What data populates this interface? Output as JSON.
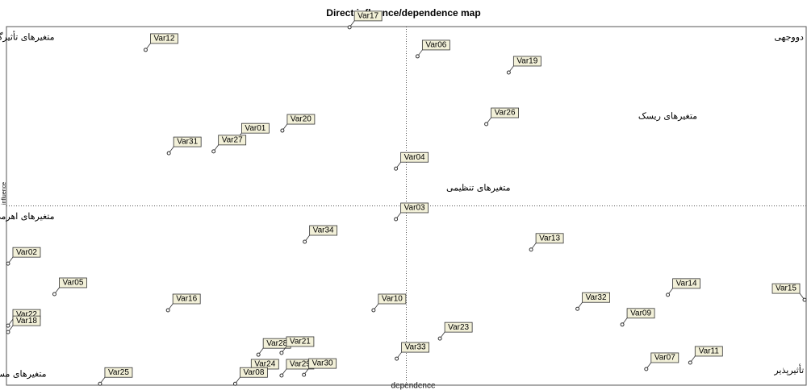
{
  "chart_data": {
    "type": "scatter",
    "title": "Direct influence/dependence map",
    "x_label": "dependence",
    "y_label": "influence",
    "xlim": [
      0,
      100
    ],
    "ylim": [
      0,
      100
    ],
    "color": "#333333",
    "label_fill": "#f2f0d8",
    "quadrant_lines": true,
    "labels": [
      "Var12",
      "Var17",
      "Var06",
      "Var19",
      "Var26",
      "Var01",
      "Var20",
      "Var31",
      "Var27",
      "Var04",
      "Var03",
      "Var34",
      "Var13",
      "Var02",
      "Var05",
      "Var16",
      "Var10",
      "Var32",
      "Var14",
      "Var15",
      "Var09",
      "Var22",
      "Var18",
      "Var28",
      "Var23",
      "Var21",
      "Var33",
      "Var11",
      "Var07",
      "Var24",
      "Var29",
      "Var30",
      "Var08",
      "Var25"
    ],
    "x": [
      17.4,
      42.9,
      51.4,
      62.8,
      60.0,
      28.8,
      34.5,
      20.3,
      25.9,
      48.7,
      48.7,
      37.3,
      65.6,
      0.2,
      6.0,
      20.2,
      45.9,
      71.4,
      82.7,
      99.8,
      77.0,
      0.2,
      0.2,
      31.5,
      54.2,
      34.4,
      48.8,
      85.5,
      80.0,
      30.0,
      34.4,
      37.2,
      28.6,
      11.7
    ],
    "values": [
      93.5,
      99.8,
      91.7,
      87.2,
      72.8,
      68.5,
      71.0,
      64.7,
      65.2,
      60.4,
      46.3,
      40.0,
      37.8,
      33.9,
      25.4,
      20.9,
      20.9,
      21.3,
      25.2,
      23.8,
      16.9,
      16.6,
      14.8,
      8.5,
      13.0,
      9.0,
      7.4,
      6.3,
      4.5,
      2.7,
      2.7,
      2.9,
      0.4,
      0.4
    ],
    "annotations": [
      {
        "text": "متغیرهای تأثیرگذار",
        "x": 6,
        "y": 97
      },
      {
        "text": "متغیرهای دووجهی",
        "x": 96,
        "y": 97
      },
      {
        "text": "متغیرهای ریسک",
        "x": 79,
        "y": 75
      },
      {
        "text": "متغیرهای تنظیمی",
        "x": 55,
        "y": 55
      },
      {
        "text": "متغیرهای اهرمی ثانویه",
        "x": 6,
        "y": 47
      },
      {
        "text": "متغیرهای مستقل",
        "x": 5,
        "y": 3
      },
      {
        "text": "متغیرهای تأثیرپذیر",
        "x": 96,
        "y": 4
      }
    ]
  }
}
